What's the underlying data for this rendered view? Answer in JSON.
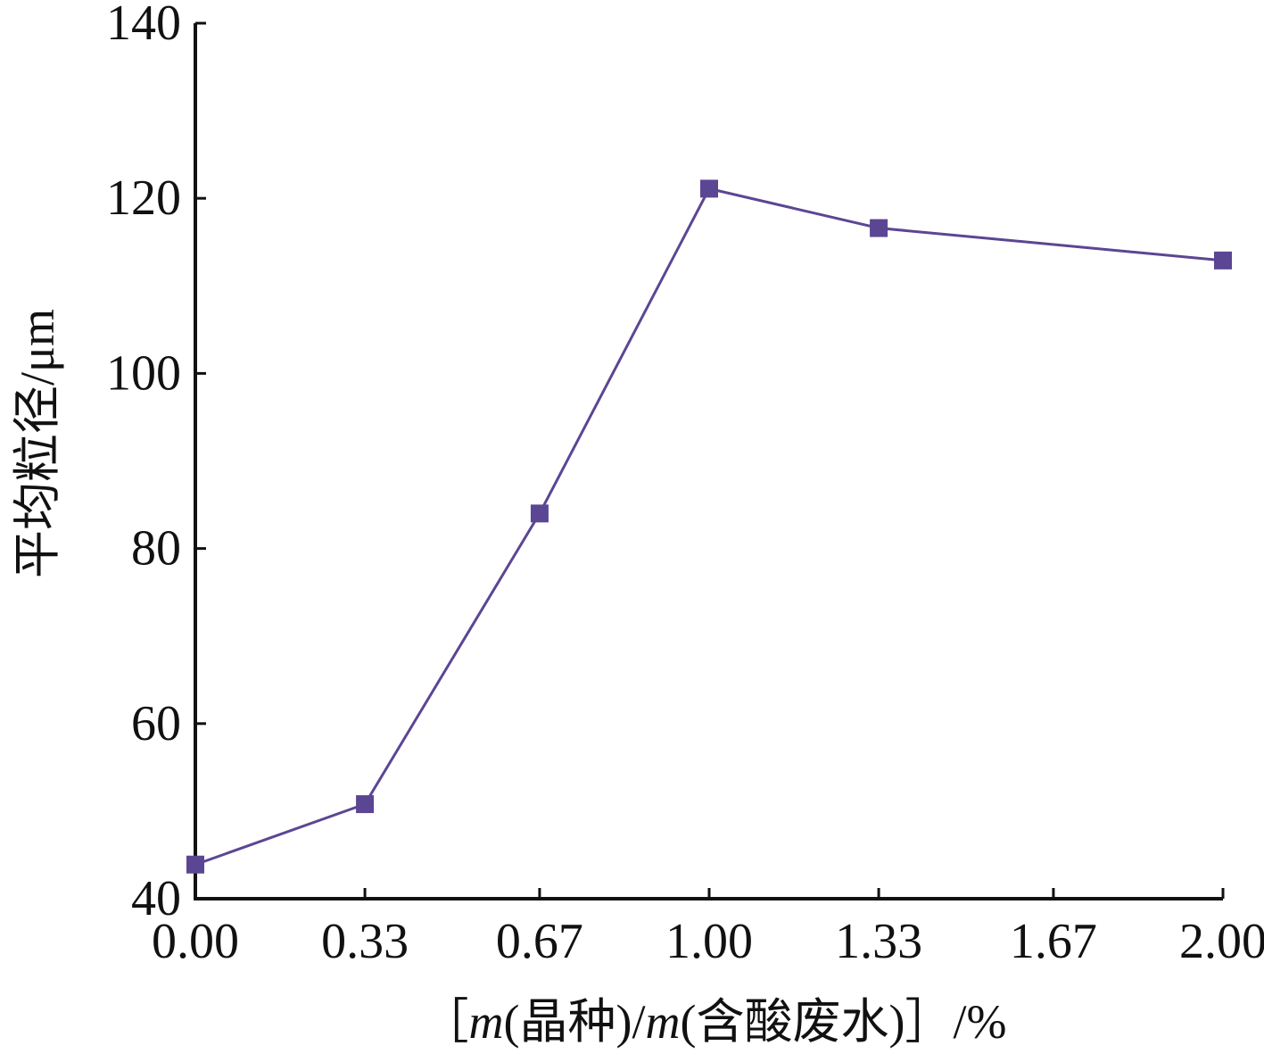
{
  "chart_data": {
    "type": "line",
    "title": "",
    "xlabel": "［m(晶种)/m(含酸废水)］/%",
    "xlabel_parts": [
      {
        "text": "［",
        "italic": false
      },
      {
        "text": "m",
        "italic": true
      },
      {
        "text": "(晶种)/",
        "italic": false
      },
      {
        "text": "m",
        "italic": true
      },
      {
        "text": "(含酸废水)］/%",
        "italic": false
      }
    ],
    "ylabel": "平均粒径/μm",
    "xlim": [
      0,
      2
    ],
    "ylim": [
      40,
      140
    ],
    "x_ticks": [
      {
        "value": 0.0,
        "label": "0.00"
      },
      {
        "value": 0.33,
        "label": "0.33"
      },
      {
        "value": 0.67,
        "label": "0.67"
      },
      {
        "value": 1.0,
        "label": "1.00"
      },
      {
        "value": 1.33,
        "label": "1.33"
      },
      {
        "value": 1.67,
        "label": "1.67"
      },
      {
        "value": 2.0,
        "label": "2.00"
      }
    ],
    "y_ticks": [
      {
        "value": 40,
        "label": "40"
      },
      {
        "value": 60,
        "label": "60"
      },
      {
        "value": 80,
        "label": "80"
      },
      {
        "value": 100,
        "label": "100"
      },
      {
        "value": 120,
        "label": "120"
      },
      {
        "value": 140,
        "label": "140"
      }
    ],
    "grid": false,
    "series": [
      {
        "x": [
          0.0,
          0.33,
          0.67,
          1.0,
          1.33,
          2.0
        ],
        "y": [
          43.9,
          50.8,
          84.0,
          121.1,
          116.6,
          112.9
        ],
        "color": "#5b4693",
        "marker": "square"
      }
    ]
  }
}
